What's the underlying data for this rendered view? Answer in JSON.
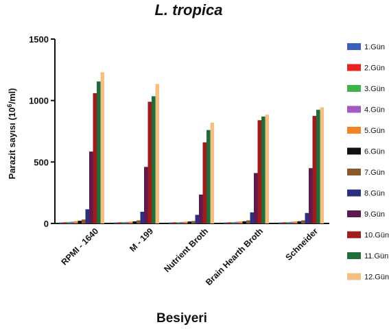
{
  "chart_data": {
    "type": "bar",
    "title": "L. tropica",
    "xlabel": "Besiyeri",
    "ylabel_prefix": "Parazit sayısı (10",
    "ylabel_sup": "6",
    "ylabel_suffix": "/ml)",
    "ylim": [
      0,
      1500
    ],
    "yticks": [
      0,
      500,
      1000,
      1500
    ],
    "legend_position": "right",
    "categories": [
      "RPMI - 1640",
      "M - 199",
      "Nutrient Broth",
      "Brain Hearth Broth",
      "Schneider"
    ],
    "series": [
      {
        "name": "1.Gün",
        "color": "#3a5fbd",
        "values": [
          8,
          8,
          8,
          8,
          8
        ]
      },
      {
        "name": "2.Gün",
        "color": "#e52421",
        "values": [
          10,
          10,
          10,
          10,
          10
        ]
      },
      {
        "name": "3.Gün",
        "color": "#3cb44b",
        "values": [
          12,
          11,
          10,
          11,
          11
        ]
      },
      {
        "name": "4.Gün",
        "color": "#a25bc1",
        "values": [
          14,
          12,
          12,
          13,
          13
        ]
      },
      {
        "name": "5.Gün",
        "color": "#f58220",
        "values": [
          18,
          15,
          14,
          16,
          16
        ]
      },
      {
        "name": "6.Gün",
        "color": "#111111",
        "values": [
          22,
          17,
          16,
          18,
          18
        ]
      },
      {
        "name": "7.Gün",
        "color": "#8b5a2b",
        "values": [
          32,
          25,
          20,
          25,
          25
        ]
      },
      {
        "name": "8.Gün",
        "color": "#2b2f80",
        "values": [
          115,
          95,
          70,
          90,
          85
        ]
      },
      {
        "name": "9.Gün",
        "color": "#5c1a4f",
        "values": [
          585,
          460,
          235,
          410,
          450
        ]
      },
      {
        "name": "10.Gün",
        "color": "#a01c1c",
        "values": [
          1060,
          990,
          660,
          840,
          875
        ]
      },
      {
        "name": "11.Gün",
        "color": "#1f6e3a",
        "values": [
          1155,
          1035,
          760,
          870,
          925
        ]
      },
      {
        "name": "12.Gün",
        "color": "#f5be82",
        "values": [
          1230,
          1135,
          820,
          885,
          945
        ]
      }
    ]
  }
}
